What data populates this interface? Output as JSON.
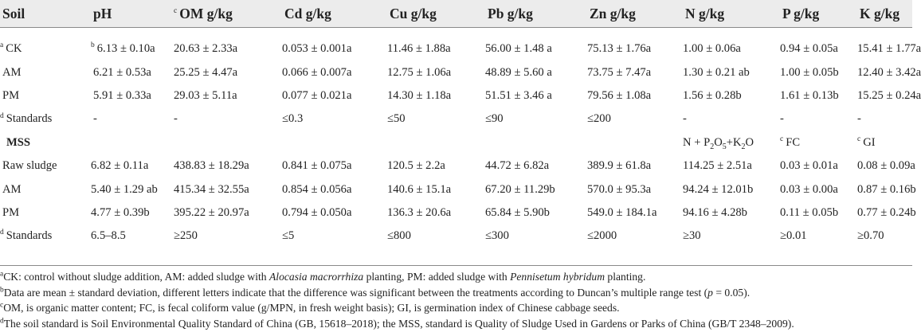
{
  "headers": [
    {
      "sup": "",
      "label": "Soil"
    },
    {
      "sup": "",
      "label": "pH"
    },
    {
      "sup": "c",
      "label": "OM g/kg"
    },
    {
      "sup": "",
      "label": "Cd g/kg"
    },
    {
      "sup": "",
      "label": "Cu g/kg"
    },
    {
      "sup": "",
      "label": "Pb g/kg"
    },
    {
      "sup": "",
      "label": "Zn g/kg"
    },
    {
      "sup": "",
      "label": "N g/kg"
    },
    {
      "sup": "",
      "label": "P g/kg"
    },
    {
      "sup": "",
      "label": "K g/kg"
    }
  ],
  "soil_rows": [
    {
      "name_sup": "a",
      "name": "CK",
      "ph_sup": "b",
      "cells": [
        "6.13 ± 0.10a",
        "20.63 ± 2.33a",
        "0.053 ± 0.001a",
        "11.46 ± 1.88a",
        "56.00 ± 1.48 a",
        "75.13 ± 1.76a",
        "1.00 ± 0.06a",
        "0.94 ± 0.05a",
        "15.41 ± 1.77a"
      ]
    },
    {
      "name_sup": "",
      "name": "AM",
      "ph_sup": "",
      "cells": [
        "6.21 ± 0.53a",
        "25.25 ± 4.47a",
        "0.066 ± 0.007a",
        "12.75 ± 1.06a",
        "48.89 ± 5.60 a",
        "73.75 ± 7.47a",
        "1.30 ± 0.21 ab",
        "1.00 ± 0.05b",
        "12.40 ± 3.42a"
      ]
    },
    {
      "name_sup": "",
      "name": "PM",
      "ph_sup": "",
      "cells": [
        "5.91 ± 0.33a",
        "29.03 ± 5.11a",
        "0.077 ± 0.021a",
        "14.30 ± 1.18a",
        "51.51 ± 3.46 a",
        "79.56 ± 1.08a",
        "1.56 ± 0.28b",
        "1.61 ± 0.13b",
        "15.25 ± 0.24a"
      ]
    },
    {
      "name_sup": "d",
      "name": "Standards",
      "ph_sup": "",
      "cells": [
        "-",
        "-",
        "≤0.3",
        "≤50",
        "≤90",
        "≤200",
        "-",
        "-",
        "-"
      ]
    }
  ],
  "mss_header": {
    "label": "MSS",
    "n_col": {
      "pre": "N + P",
      "sub1": "2",
      "mid": "O",
      "sub2": "5",
      "post": "+K",
      "sub3": "2",
      "end": "O"
    },
    "p_col": {
      "sup": "c",
      "label": "FC"
    },
    "k_col": {
      "sup": "c",
      "label": "GI"
    }
  },
  "mss_rows": [
    {
      "name_sup": "",
      "name": "Raw sludge",
      "cells": [
        "6.82 ± 0.11a",
        "438.83 ± 18.29a",
        "0.841 ± 0.075a",
        "120.5 ± 2.2a",
        "44.72 ± 6.82a",
        "389.9 ± 61.8a",
        "114.25 ± 2.51a",
        "0.03 ± 0.01a",
        "0.08 ± 0.09a"
      ]
    },
    {
      "name_sup": "",
      "name": "AM",
      "cells": [
        "5.40 ± 1.29 ab",
        "415.34 ± 32.55a",
        "0.854 ± 0.056a",
        "140.6 ± 15.1a",
        "67.20 ± 11.29b",
        "570.0 ± 95.3a",
        "94.24 ± 12.01b",
        "0.03 ± 0.00a",
        "0.87 ± 0.16b"
      ]
    },
    {
      "name_sup": "",
      "name": "PM",
      "cells": [
        "4.77 ± 0.39b",
        "395.22 ± 20.97a",
        "0.794 ± 0.050a",
        "136.3 ± 20.6a",
        "65.84 ± 5.90b",
        "549.0 ± 184.1a",
        "94.16 ± 4.28b",
        "0.11 ± 0.05b",
        "0.77 ± 0.24b"
      ]
    },
    {
      "name_sup": "d",
      "name": "Standards",
      "cells": [
        "6.5–8.5",
        "≥250",
        "≤5",
        "≤800",
        "≤300",
        "≤2000",
        "≥30",
        "≥0.01",
        "≥0.70"
      ]
    }
  ],
  "footnotes": {
    "a": {
      "sup": "a",
      "t1": "CK: control without sludge addition, AM: added sludge with ",
      "i1": "Alocasia macrorrhiza",
      "t2": " planting, PM: added sludge with ",
      "i2": "Pennisetum hybridum",
      "t3": " planting."
    },
    "b": {
      "sup": "b",
      "t1": "Data are mean ± standard deviation, different letters indicate that the difference was significant between the treatments according to Duncan’s multiple range test (",
      "i1": "p",
      "t2": " = 0.05)."
    },
    "c": {
      "sup": "c",
      "t1": "OM, is organic matter content; FC, is fecal coliform value (g/MPN, in fresh weight basis); GI, is germination index of Chinese cabbage seeds."
    },
    "d": {
      "sup": "d",
      "t1": "The soil standard is Soil Environmental Quality Standard of China (GB, 15618–2018); the MSS, standard is Quality of Sludge Used in Gardens or Parks of China (GB/T 2348–2009)."
    }
  }
}
